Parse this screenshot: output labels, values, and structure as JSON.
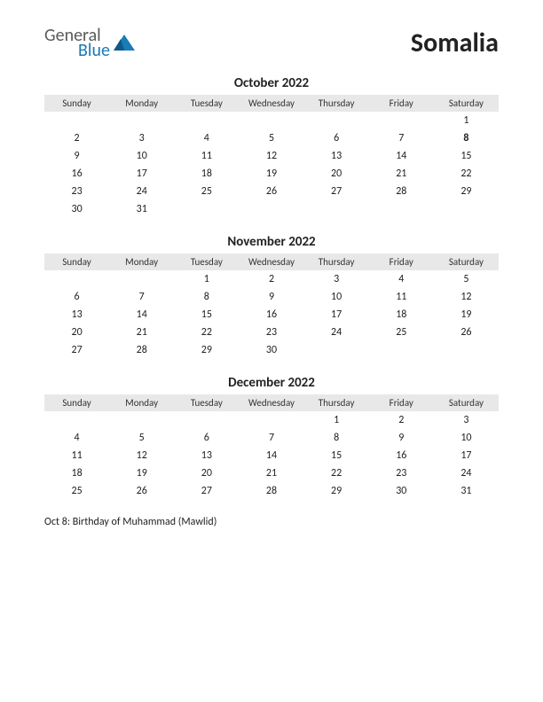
{
  "logo": {
    "text1": "General",
    "text2": "Blue",
    "color1": "#5a5a5a",
    "color2": "#1a7bb5",
    "triangle_color": "#1a7bb5"
  },
  "country": "Somalia",
  "day_headers": [
    "Sunday",
    "Monday",
    "Tuesday",
    "Wednesday",
    "Thursday",
    "Friday",
    "Saturday"
  ],
  "months": [
    {
      "title": "October 2022",
      "weeks": [
        [
          "",
          "",
          "",
          "",
          "",
          "",
          "1"
        ],
        [
          "2",
          "3",
          "4",
          "5",
          "6",
          "7",
          "8"
        ],
        [
          "9",
          "10",
          "11",
          "12",
          "13",
          "14",
          "15"
        ],
        [
          "16",
          "17",
          "18",
          "19",
          "20",
          "21",
          "22"
        ],
        [
          "23",
          "24",
          "25",
          "26",
          "27",
          "28",
          "29"
        ],
        [
          "30",
          "31",
          "",
          "",
          "",
          "",
          ""
        ]
      ],
      "holidays": [
        "8"
      ]
    },
    {
      "title": "November 2022",
      "weeks": [
        [
          "",
          "",
          "1",
          "2",
          "3",
          "4",
          "5"
        ],
        [
          "6",
          "7",
          "8",
          "9",
          "10",
          "11",
          "12"
        ],
        [
          "13",
          "14",
          "15",
          "16",
          "17",
          "18",
          "19"
        ],
        [
          "20",
          "21",
          "22",
          "23",
          "24",
          "25",
          "26"
        ],
        [
          "27",
          "28",
          "29",
          "30",
          "",
          "",
          ""
        ]
      ],
      "holidays": []
    },
    {
      "title": "December 2022",
      "weeks": [
        [
          "",
          "",
          "",
          "",
          "1",
          "2",
          "3"
        ],
        [
          "4",
          "5",
          "6",
          "7",
          "8",
          "9",
          "10"
        ],
        [
          "11",
          "12",
          "13",
          "14",
          "15",
          "16",
          "17"
        ],
        [
          "18",
          "19",
          "20",
          "21",
          "22",
          "23",
          "24"
        ],
        [
          "25",
          "26",
          "27",
          "28",
          "29",
          "30",
          "31"
        ]
      ],
      "holidays": []
    }
  ],
  "footnote": "Oct 8: Birthday of Muhammad (Mawlid)",
  "colors": {
    "header_bg": "#e8e8e8",
    "text": "#222222",
    "holiday": "#d00000",
    "background": "#ffffff"
  }
}
